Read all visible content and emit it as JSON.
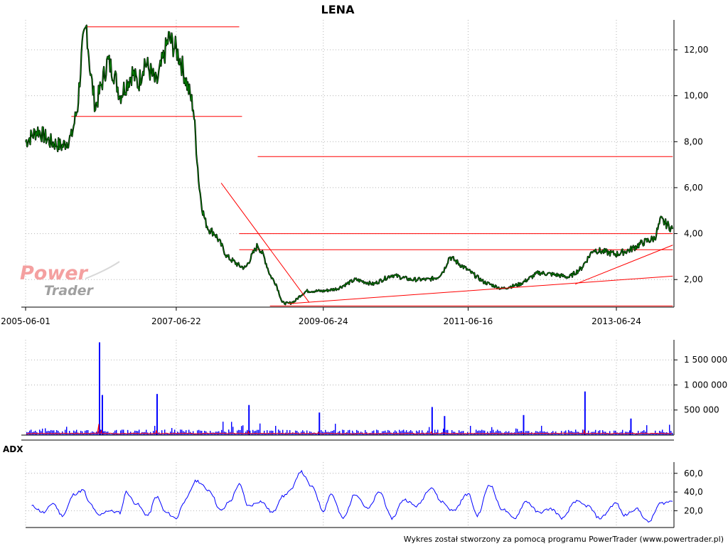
{
  "chart_data": [
    {
      "type": "line",
      "panel": "price",
      "title": "LENA",
      "x_tick_labels": [
        "2005-06-01",
        "2007-06-22",
        "2009-06-24",
        "2011-06-16",
        "2013-06-24"
      ],
      "y_tick_labels": [
        "2,00",
        "4,00",
        "6,00",
        "8,00",
        "10,00",
        "12,00"
      ],
      "y_ticks": [
        2,
        4,
        6,
        8,
        10,
        12
      ],
      "ylim": [
        0.8,
        13.3
      ],
      "xlim": [
        "2005-06-01",
        "2014-03-31"
      ],
      "grid": true,
      "series": [
        {
          "color": "#008000",
          "x": [
            "2005-06-01",
            "2005-08-01",
            "2005-10-01",
            "2005-12-01",
            "2006-01-15",
            "2006-02-15",
            "2006-03-10",
            "2006-04-01",
            "2006-04-20",
            "2006-05-15",
            "2006-06-15",
            "2006-07-15",
            "2006-08-15",
            "2006-09-15",
            "2006-10-15",
            "2006-11-15",
            "2006-12-15",
            "2007-01-15",
            "2007-02-15",
            "2007-03-15",
            "2007-04-15",
            "2007-05-15",
            "2007-06-22",
            "2007-07-15",
            "2007-08-15",
            "2007-09-15",
            "2007-10-15",
            "2007-11-01",
            "2007-11-15",
            "2007-12-01",
            "2008-01-01",
            "2008-02-01",
            "2008-03-01",
            "2008-04-01",
            "2008-05-01",
            "2008-06-01",
            "2008-07-01",
            "2008-08-01",
            "2008-09-01",
            "2008-10-01",
            "2008-11-01",
            "2008-12-01",
            "2009-01-01",
            "2009-02-01",
            "2009-03-01",
            "2009-04-01",
            "2009-06-24",
            "2009-09-01",
            "2009-12-01",
            "2010-03-01",
            "2010-06-01",
            "2010-09-01",
            "2010-12-01",
            "2011-01-15",
            "2011-02-15",
            "2011-03-15",
            "2011-06-16",
            "2011-09-01",
            "2011-12-01",
            "2012-03-01",
            "2012-06-01",
            "2012-09-01",
            "2012-11-01",
            "2013-01-01",
            "2013-03-01",
            "2013-06-24",
            "2013-09-01",
            "2013-11-01",
            "2014-01-01",
            "2014-02-01",
            "2014-03-31"
          ],
          "y": [
            8.0,
            8.5,
            8.0,
            7.8,
            8.2,
            9.5,
            12.0,
            13.0,
            11.0,
            9.5,
            10.5,
            11.5,
            11.0,
            10.0,
            10.5,
            11.0,
            10.5,
            11.5,
            11.0,
            10.5,
            11.5,
            12.5,
            12.0,
            11.5,
            10.5,
            9.5,
            6.0,
            5.0,
            4.5,
            4.2,
            4.0,
            3.5,
            3.0,
            2.8,
            2.6,
            2.5,
            3.0,
            3.5,
            3.0,
            2.2,
            1.8,
            1.0,
            0.95,
            1.05,
            1.3,
            1.5,
            1.5,
            1.6,
            2.0,
            1.8,
            2.2,
            2.0,
            2.0,
            2.1,
            2.4,
            3.0,
            2.4,
            1.9,
            1.6,
            1.8,
            2.3,
            2.2,
            2.1,
            2.5,
            3.3,
            3.1,
            3.3,
            3.6,
            3.8,
            4.6,
            4.2
          ]
        }
      ],
      "horizontal_lines": [
        {
          "y": 13.0,
          "x_start": "2006-04-01",
          "x_end": "2008-05-01",
          "color": "#ff0000"
        },
        {
          "y": 9.1,
          "x_start": "2006-01-15",
          "x_end": "2008-05-15",
          "color": "#ff0000"
        },
        {
          "y": 7.35,
          "x_start": "2008-08-01",
          "x_end": "2014-04-01",
          "color": "#ff0000"
        },
        {
          "y": 4.0,
          "x_start": "2008-05-01",
          "x_end": "2014-04-01",
          "color": "#ff0000"
        },
        {
          "y": 3.3,
          "x_start": "2008-05-01",
          "x_end": "2014-04-01",
          "color": "#ff0000"
        },
        {
          "y": 0.85,
          "x_start": "2008-10-01",
          "x_end": "2014-04-01",
          "color": "#ff0000"
        }
      ],
      "trend_lines": [
        {
          "x_start": "2008-02-01",
          "y_start": 6.2,
          "x_end": "2009-04-15",
          "y_end": 1.0,
          "color": "#ff0000"
        },
        {
          "x_start": "2009-01-01",
          "y_start": 0.95,
          "x_end": "2014-04-01",
          "y_end": 2.15,
          "color": "#ff0000"
        },
        {
          "x_start": "2012-12-01",
          "y_start": 1.8,
          "x_end": "2014-04-01",
          "y_end": 3.5,
          "color": "#ff0000"
        }
      ]
    },
    {
      "type": "bar",
      "panel": "volume",
      "y_tick_labels": [
        "500 000",
        "1 000 000",
        "1 500 000"
      ],
      "y_ticks": [
        500000,
        1000000,
        1500000
      ],
      "ylim": [
        0,
        1900000
      ],
      "grid": true,
      "bar_color": "#0000ff",
      "average_line_color": "#ff0000",
      "spikes": [
        {
          "x": "2006-06-01",
          "value": 1850000
        },
        {
          "x": "2006-06-15",
          "value": 800000
        },
        {
          "x": "2007-03-15",
          "value": 820000
        },
        {
          "x": "2008-06-15",
          "value": 600000
        },
        {
          "x": "2009-06-01",
          "value": 450000
        },
        {
          "x": "2010-12-15",
          "value": 560000
        },
        {
          "x": "2011-02-15",
          "value": 380000
        },
        {
          "x": "2012-03-15",
          "value": 400000
        },
        {
          "x": "2013-01-15",
          "value": 870000
        },
        {
          "x": "2013-09-01",
          "value": 330000
        }
      ]
    },
    {
      "type": "line",
      "panel": "indicator",
      "label": "ADX",
      "y_tick_labels": [
        "20,0",
        "40,0",
        "60,0"
      ],
      "y_ticks": [
        20,
        40,
        60
      ],
      "ylim": [
        2,
        72
      ],
      "grid": true,
      "series": [
        {
          "color": "#0000ff",
          "x": [
            "2005-07-01",
            "2005-09-01",
            "2005-10-15",
            "2005-12-01",
            "2006-02-01",
            "2006-03-15",
            "2006-04-15",
            "2006-06-01",
            "2006-07-15",
            "2006-09-15",
            "2006-10-15",
            "2006-12-01",
            "2007-02-01",
            "2007-03-15",
            "2007-05-01",
            "2007-06-22",
            "2007-08-01",
            "2007-10-01",
            "2007-12-01",
            "2008-02-01",
            "2008-03-15",
            "2008-05-01",
            "2008-06-15",
            "2008-08-15",
            "2008-10-15",
            "2008-12-01",
            "2009-01-15",
            "2009-03-01",
            "2009-05-01",
            "2009-06-24",
            "2009-08-01",
            "2009-10-01",
            "2009-12-01",
            "2010-02-01",
            "2010-04-01",
            "2010-06-01",
            "2010-08-01",
            "2010-10-01",
            "2010-12-15",
            "2011-02-01",
            "2011-04-01",
            "2011-06-16",
            "2011-08-01",
            "2011-10-01",
            "2011-12-01",
            "2012-02-01",
            "2012-04-01",
            "2012-06-01",
            "2012-08-01",
            "2012-10-01",
            "2012-12-01",
            "2013-02-01",
            "2013-04-01",
            "2013-06-24",
            "2013-08-01",
            "2013-10-01",
            "2013-12-01",
            "2014-02-01",
            "2014-03-31"
          ],
          "y": [
            25,
            18,
            28,
            15,
            38,
            42,
            28,
            15,
            20,
            18,
            40,
            28,
            15,
            35,
            18,
            12,
            30,
            52,
            42,
            20,
            30,
            48,
            25,
            30,
            18,
            35,
            42,
            62,
            45,
            20,
            38,
            12,
            38,
            22,
            40,
            12,
            32,
            25,
            45,
            30,
            20,
            38,
            15,
            48,
            22,
            12,
            30,
            18,
            22,
            12,
            30,
            25,
            12,
            28,
            15,
            22,
            8,
            28,
            30
          ]
        }
      ]
    }
  ],
  "footer": {
    "text": "Wykres został stworzony za pomocą programu PowerTrader (www.powertrader.pl)"
  },
  "watermark": {
    "line1": "Power",
    "line2": "Trader"
  },
  "colors": {
    "price_line": "#008000",
    "annotation_lines": "#ff0000",
    "volume_bars": "#0000ff",
    "volume_average": "#ff0000",
    "adx_line": "#0000ff",
    "watermark_power": "#f4a0a0",
    "watermark_trader": "#a0a0a0"
  }
}
